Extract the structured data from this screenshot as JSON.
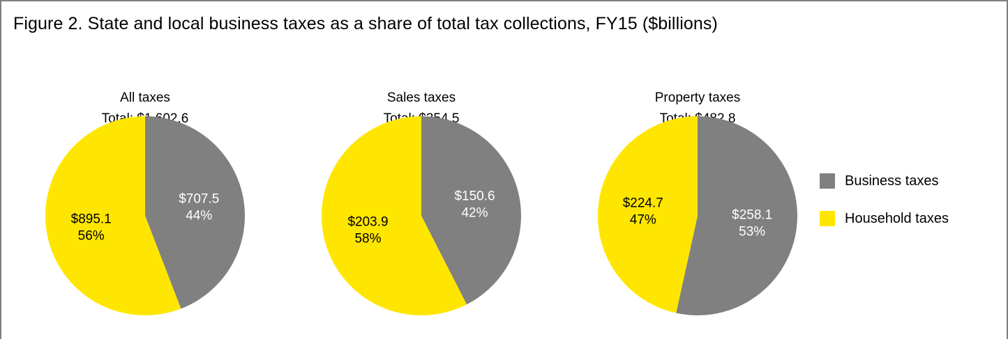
{
  "colors": {
    "business": "#808080",
    "household": "#ffe600",
    "business_text": "#ffffff",
    "household_text": "#000000",
    "frame": "#7f7f7f"
  },
  "chart_data": {
    "type": "pie",
    "title": "Figure 2. State and local business taxes as a share of total tax collections, FY15 ($billions)",
    "legend": {
      "placement": "right",
      "entries": [
        "Business taxes",
        "Household taxes"
      ]
    },
    "pies": [
      {
        "title": "All taxes",
        "subtitle": "Total: $1,602.6",
        "slices": [
          {
            "name": "Business taxes",
            "value": 707.5,
            "value_label": "$707.5",
            "percent_label": "44%"
          },
          {
            "name": "Household taxes",
            "value": 895.1,
            "value_label": "$895.1",
            "percent_label": "56%"
          }
        ]
      },
      {
        "title": "Sales taxes",
        "subtitle": "Total: $354.5",
        "slices": [
          {
            "name": "Business taxes",
            "value": 150.6,
            "value_label": "$150.6",
            "percent_label": "42%"
          },
          {
            "name": "Household taxes",
            "value": 203.9,
            "value_label": "$203.9",
            "percent_label": "58%"
          }
        ]
      },
      {
        "title": "Property taxes",
        "subtitle": "Total: $482.8",
        "slices": [
          {
            "name": "Business taxes",
            "value": 258.1,
            "value_label": "$258.1",
            "percent_label": "53%"
          },
          {
            "name": "Household taxes",
            "value": 224.7,
            "value_label": "$224.7",
            "percent_label": "47%"
          }
        ]
      }
    ]
  }
}
